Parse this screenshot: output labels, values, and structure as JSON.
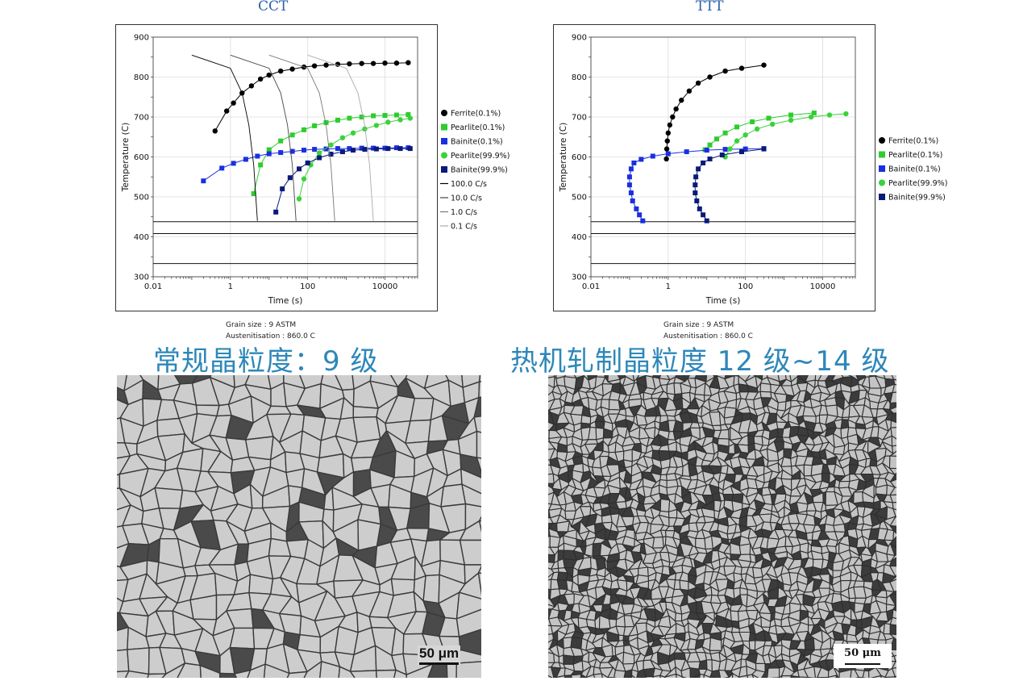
{
  "chart_data": [
    {
      "type": "line",
      "title": "CCT",
      "xlabel": "Time (s)",
      "ylabel": "Temperature (C)",
      "xscale": "log",
      "xlim": [
        0.01,
        70000
      ],
      "ylim": [
        300,
        900
      ],
      "x_ticks": [
        "0.01",
        "1",
        "100",
        "10000"
      ],
      "y_ticks": [
        "300",
        "400",
        "500",
        "600",
        "700",
        "800",
        "900"
      ],
      "grid": true,
      "legend_position": "right",
      "footer": [
        "Grain size : 9 ASTM",
        "Austenitisation : 860.0 C"
      ],
      "horizontal_lines_y": [
        438,
        408,
        333
      ],
      "series": [
        {
          "name": "Ferrite(0.1%)",
          "color": "#000000",
          "marker": "circle",
          "points": [
            [
              0.4,
              665
            ],
            [
              0.8,
              715
            ],
            [
              1.2,
              735
            ],
            [
              2,
              760
            ],
            [
              3.5,
              778
            ],
            [
              6,
              795
            ],
            [
              10,
              805
            ],
            [
              20,
              815
            ],
            [
              40,
              820
            ],
            [
              80,
              825
            ],
            [
              150,
              828
            ],
            [
              300,
              830
            ],
            [
              600,
              832
            ],
            [
              1200,
              833
            ],
            [
              2500,
              834
            ],
            [
              5000,
              834
            ],
            [
              10000,
              835
            ],
            [
              20000,
              835
            ],
            [
              40000,
              836
            ]
          ]
        },
        {
          "name": "Pearlite(0.1%)",
          "color": "#2ecc2e",
          "marker": "square",
          "points": [
            [
              4,
              508
            ],
            [
              6,
              580
            ],
            [
              10,
              618
            ],
            [
              20,
              640
            ],
            [
              40,
              655
            ],
            [
              80,
              668
            ],
            [
              150,
              678
            ],
            [
              300,
              686
            ],
            [
              600,
              692
            ],
            [
              1200,
              697
            ],
            [
              2500,
              700
            ],
            [
              5000,
              703
            ],
            [
              10000,
              704
            ],
            [
              20000,
              705
            ],
            [
              40000,
              706
            ]
          ]
        },
        {
          "name": "Bainite(0.1%)",
          "color": "#1a2fe0",
          "marker": "square",
          "points": [
            [
              0.2,
              540
            ],
            [
              0.6,
              572
            ],
            [
              1.2,
              584
            ],
            [
              2.5,
              594
            ],
            [
              5,
              602
            ],
            [
              10,
              608
            ],
            [
              20,
              611
            ],
            [
              40,
              614
            ],
            [
              80,
              617
            ],
            [
              150,
              619
            ],
            [
              300,
              620
            ],
            [
              600,
              621
            ],
            [
              1200,
              621
            ],
            [
              2500,
              622
            ],
            [
              5000,
              622
            ],
            [
              10000,
              622
            ],
            [
              20000,
              623
            ],
            [
              40000,
              623
            ]
          ]
        },
        {
          "name": "Pearlite(99.9%)",
          "color": "#3ad23a",
          "marker": "circle",
          "points": [
            [
              60,
              495
            ],
            [
              80,
              545
            ],
            [
              120,
              580
            ],
            [
              200,
              610
            ],
            [
              400,
              630
            ],
            [
              800,
              648
            ],
            [
              1500,
              660
            ],
            [
              3000,
              670
            ],
            [
              6000,
              679
            ],
            [
              12000,
              687
            ],
            [
              25000,
              693
            ],
            [
              45000,
              697
            ]
          ]
        },
        {
          "name": "Bainite(99.9%)",
          "color": "#0a1a7a",
          "marker": "square",
          "points": [
            [
              15,
              462
            ],
            [
              22,
              520
            ],
            [
              35,
              548
            ],
            [
              60,
              570
            ],
            [
              100,
              585
            ],
            [
              200,
              598
            ],
            [
              400,
              607
            ],
            [
              800,
              613
            ],
            [
              1500,
              617
            ],
            [
              3000,
              619
            ],
            [
              6000,
              620
            ],
            [
              12000,
              621
            ],
            [
              25000,
              621
            ],
            [
              45000,
              621
            ]
          ]
        },
        {
          "name": "100.0 C/s",
          "color": "#000000",
          "marker": "none",
          "points": [
            [
              0.1,
              855
            ],
            [
              1,
              822
            ],
            [
              2,
              760
            ],
            [
              3,
              680
            ],
            [
              4,
              580
            ],
            [
              5,
              440
            ]
          ]
        },
        {
          "name": "10.0 C/s",
          "color": "#444444",
          "marker": "none",
          "points": [
            [
              1,
              855
            ],
            [
              10,
              822
            ],
            [
              20,
              760
            ],
            [
              30,
              680
            ],
            [
              40,
              580
            ],
            [
              50,
              440
            ]
          ]
        },
        {
          "name": "1.0 C/s",
          "color": "#777777",
          "marker": "none",
          "points": [
            [
              10,
              855
            ],
            [
              100,
              822
            ],
            [
              200,
              760
            ],
            [
              300,
              680
            ],
            [
              400,
              580
            ],
            [
              500,
              440
            ]
          ]
        },
        {
          "name": "0.1 C/s",
          "color": "#aaaaaa",
          "marker": "none",
          "points": [
            [
              100,
              855
            ],
            [
              1000,
              822
            ],
            [
              2000,
              760
            ],
            [
              3000,
              680
            ],
            [
              4000,
              580
            ],
            [
              5000,
              440
            ]
          ]
        }
      ]
    },
    {
      "type": "line",
      "title": "TTT",
      "xlabel": "Time (s)",
      "ylabel": "Temperature (C)",
      "xscale": "log",
      "xlim": [
        0.01,
        70000
      ],
      "ylim": [
        300,
        900
      ],
      "x_ticks": [
        "0.01",
        "1",
        "100",
        "10000"
      ],
      "y_ticks": [
        "300",
        "400",
        "500",
        "600",
        "700",
        "800",
        "900"
      ],
      "grid": true,
      "legend_position": "right",
      "footer": [
        "Grain size : 9 ASTM",
        "Austenitisation : 860.0 C"
      ],
      "horizontal_lines_y": [
        438,
        408,
        333
      ],
      "series": [
        {
          "name": "Ferrite(0.1%)",
          "color": "#000000",
          "marker": "circle",
          "points": [
            [
              0.9,
              595
            ],
            [
              0.92,
              620
            ],
            [
              0.95,
              640
            ],
            [
              1.0,
              660
            ],
            [
              1.1,
              680
            ],
            [
              1.3,
              700
            ],
            [
              1.6,
              720
            ],
            [
              2.2,
              742
            ],
            [
              3.5,
              765
            ],
            [
              6,
              785
            ],
            [
              12,
              800
            ],
            [
              30,
              815
            ],
            [
              80,
              822
            ],
            [
              300,
              830
            ]
          ]
        },
        {
          "name": "Pearlite(0.1%)",
          "color": "#2ecc2e",
          "marker": "square",
          "points": [
            [
              9,
              618
            ],
            [
              12,
              630
            ],
            [
              18,
              645
            ],
            [
              30,
              660
            ],
            [
              60,
              675
            ],
            [
              150,
              688
            ],
            [
              400,
              697
            ],
            [
              1500,
              705
            ],
            [
              6000,
              710
            ]
          ]
        },
        {
          "name": "Bainite(0.1%)",
          "color": "#1a2fe0",
          "marker": "square",
          "points": [
            [
              0.22,
              440
            ],
            [
              0.18,
              455
            ],
            [
              0.15,
              470
            ],
            [
              0.12,
              490
            ],
            [
              0.11,
              510
            ],
            [
              0.1,
              530
            ],
            [
              0.1,
              550
            ],
            [
              0.11,
              570
            ],
            [
              0.13,
              585
            ],
            [
              0.2,
              594
            ],
            [
              0.4,
              602
            ],
            [
              1,
              608
            ],
            [
              3,
              613
            ],
            [
              10,
              617
            ],
            [
              30,
              619
            ],
            [
              100,
              620
            ],
            [
              300,
              621
            ]
          ]
        },
        {
          "name": "Pearlite(99.9%)",
          "color": "#3ad23a",
          "marker": "circle",
          "points": [
            [
              30,
              600
            ],
            [
              40,
              620
            ],
            [
              60,
              640
            ],
            [
              100,
              655
            ],
            [
              200,
              670
            ],
            [
              500,
              682
            ],
            [
              1500,
              692
            ],
            [
              5000,
              700
            ],
            [
              15000,
              705
            ],
            [
              40000,
              708
            ]
          ]
        },
        {
          "name": "Bainite(99.9%)",
          "color": "#0a1a7a",
          "marker": "square",
          "points": [
            [
              10,
              440
            ],
            [
              8,
              455
            ],
            [
              6.5,
              470
            ],
            [
              5.5,
              490
            ],
            [
              5,
              510
            ],
            [
              5,
              530
            ],
            [
              5.2,
              550
            ],
            [
              6,
              570
            ],
            [
              8,
              585
            ],
            [
              12,
              595
            ],
            [
              25,
              605
            ],
            [
              80,
              613
            ],
            [
              300,
              620
            ]
          ]
        }
      ]
    }
  ],
  "captions": {
    "left": "常规晶粒度：9 级",
    "right": "热机轧制晶粒度 12 级~14 级"
  },
  "micrographs": {
    "left_scale": "50 μm",
    "right_scale": "50 μm"
  }
}
